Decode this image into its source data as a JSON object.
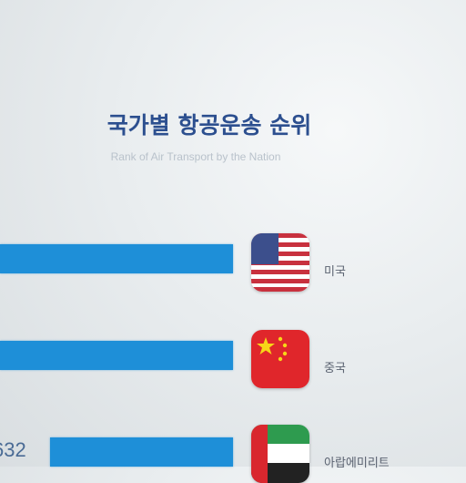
{
  "chart_data": {
    "type": "bar",
    "title": "국가별 항공운송 순위",
    "subtitle": "Rank of Air Transport by the Nation",
    "categories": [
      "미국",
      "중국",
      "아랍에미리트"
    ],
    "value_labels": [
      "",
      "",
      "632"
    ],
    "bar_color": "#1e8fd8",
    "flags": [
      "us-flag-icon",
      "china-flag-icon",
      "uae-flag-icon"
    ]
  }
}
